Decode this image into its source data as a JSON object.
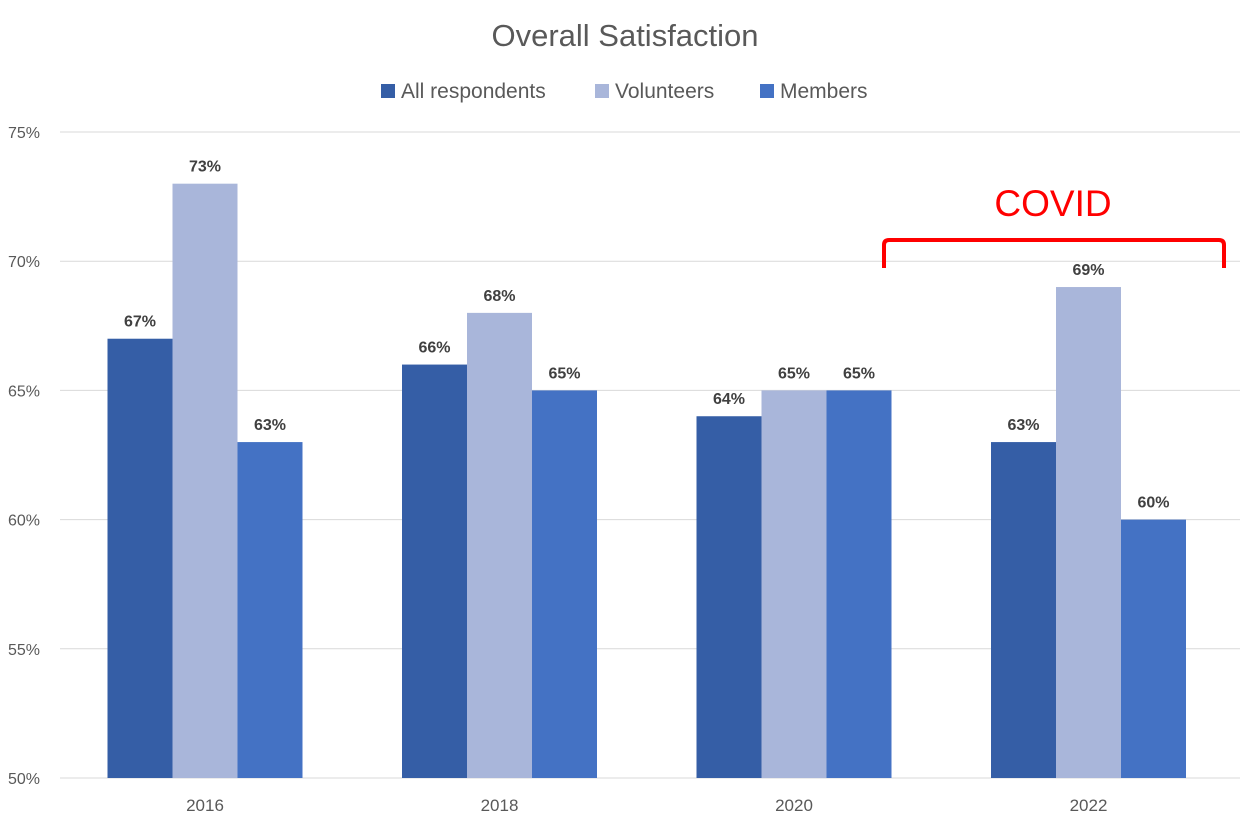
{
  "chart_data": {
    "type": "bar",
    "title": "Overall Satisfaction",
    "xlabel": "",
    "ylabel": "",
    "categories": [
      "2016",
      "2018",
      "2020",
      "2022"
    ],
    "series": [
      {
        "name": "All respondents",
        "color": "#355EA6",
        "values": [
          67,
          66,
          64,
          63
        ],
        "labels": [
          "67%",
          "66%",
          "64%",
          "63%"
        ]
      },
      {
        "name": "Volunteers",
        "color": "#A9B6DA",
        "values": [
          73,
          68,
          65,
          69
        ],
        "labels": [
          "73%",
          "68%",
          "65%",
          "69%"
        ]
      },
      {
        "name": "Members",
        "color": "#4472C4",
        "values": [
          63,
          65,
          65,
          60
        ],
        "labels": [
          "63%",
          "65%",
          "65%",
          "60%"
        ]
      }
    ],
    "ylim": [
      50,
      75
    ],
    "yticks": [
      50,
      55,
      60,
      65,
      70,
      75
    ],
    "ytick_labels": [
      "50%",
      "55%",
      "60%",
      "65%",
      "70%",
      "75%"
    ],
    "grid": true,
    "legend_position": "top-center",
    "annotation": {
      "text": "COVID",
      "color": "#FF0000",
      "spans_categories": [
        "2020",
        "2022"
      ]
    }
  }
}
